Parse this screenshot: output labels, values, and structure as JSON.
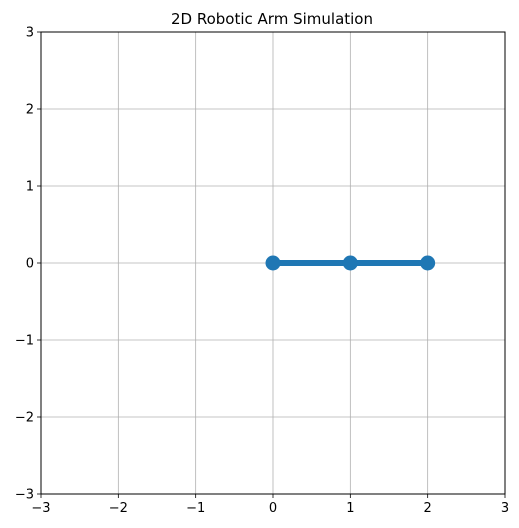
{
  "chart_data": {
    "type": "line",
    "title": "2D Robotic Arm Simulation",
    "xlabel": "",
    "ylabel": "",
    "xlim": [
      -3,
      3
    ],
    "ylim": [
      -3,
      3
    ],
    "grid": true,
    "x_ticks": [
      "−3",
      "−2",
      "−1",
      "0",
      "1",
      "2",
      "3"
    ],
    "y_ticks": [
      "−3",
      "−2",
      "−1",
      "0",
      "1",
      "2",
      "3"
    ],
    "x_tick_values": [
      -3,
      -2,
      -1,
      0,
      1,
      2,
      3
    ],
    "y_tick_values": [
      -3,
      -2,
      -1,
      0,
      1,
      2,
      3
    ],
    "series": [
      {
        "x": [
          0,
          1,
          2
        ],
        "y": [
          0,
          0,
          0
        ],
        "color": "#1f77b4",
        "marker": "circle"
      }
    ]
  }
}
